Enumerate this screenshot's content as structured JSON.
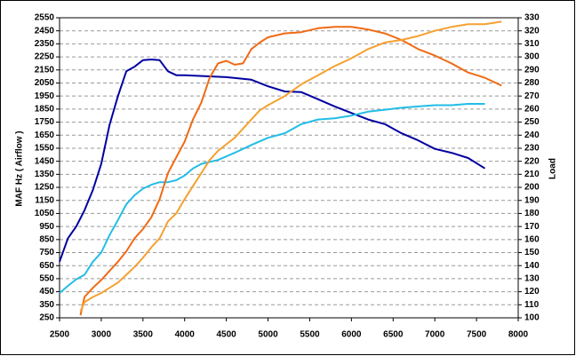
{
  "chart_data": {
    "type": "line",
    "y_label": "MAF Hz ( Airflow )",
    "y2_label": "Load",
    "xlim": [
      2500,
      8000
    ],
    "xticks": [
      2500,
      3000,
      3500,
      4000,
      4500,
      5000,
      5500,
      6000,
      6500,
      7000,
      7500,
      8000
    ],
    "ylim": [
      250,
      2550
    ],
    "yticks": [
      250,
      350,
      450,
      550,
      650,
      750,
      850,
      950,
      1050,
      1150,
      1250,
      1350,
      1450,
      1550,
      1650,
      1750,
      1850,
      1950,
      2050,
      2150,
      2250,
      2350,
      2450,
      2550
    ],
    "y2lim": [
      100,
      330
    ],
    "y2ticks": [
      100,
      110,
      120,
      130,
      140,
      150,
      160,
      170,
      180,
      190,
      200,
      210,
      220,
      230,
      240,
      250,
      260,
      270,
      280,
      290,
      300,
      310,
      320,
      330
    ],
    "grid": true,
    "series": [
      {
        "color": "#0000a0",
        "axis": "y",
        "x": [
          2500,
          2600,
          2700,
          2800,
          2900,
          3000,
          3100,
          3200,
          3300,
          3400,
          3500,
          3600,
          3700,
          3800,
          3900,
          4000,
          4500,
          4800,
          5000,
          5200,
          5400,
          5600,
          5800,
          6000,
          6200,
          6400,
          6600,
          6800,
          7000,
          7200,
          7400,
          7600
        ],
        "values": [
          680,
          860,
          950,
          1075,
          1230,
          1430,
          1730,
          1950,
          2140,
          2175,
          2225,
          2230,
          2225,
          2140,
          2110,
          2110,
          2095,
          2075,
          2025,
          1985,
          1980,
          1925,
          1870,
          1820,
          1770,
          1735,
          1665,
          1610,
          1545,
          1515,
          1475,
          1395
        ]
      },
      {
        "color": "#22bde6",
        "axis": "y",
        "x": [
          2500,
          2600,
          2700,
          2800,
          2900,
          3000,
          3100,
          3200,
          3300,
          3400,
          3500,
          3600,
          3700,
          3800,
          3900,
          4000,
          4100,
          4200,
          4400,
          4600,
          4800,
          5000,
          5200,
          5400,
          5600,
          5800,
          6000,
          6200,
          6400,
          6600,
          6800,
          7000,
          7200,
          7400,
          7600
        ],
        "values": [
          440,
          495,
          545,
          580,
          680,
          750,
          885,
          1000,
          1120,
          1190,
          1240,
          1270,
          1290,
          1290,
          1305,
          1340,
          1395,
          1430,
          1460,
          1515,
          1575,
          1630,
          1665,
          1735,
          1770,
          1780,
          1800,
          1830,
          1845,
          1860,
          1870,
          1880,
          1880,
          1890,
          1890
        ]
      },
      {
        "color": "#f06a14",
        "axis": "y2",
        "x": [
          2750,
          2800,
          2900,
          3000,
          3100,
          3200,
          3300,
          3400,
          3500,
          3600,
          3700,
          3800,
          3900,
          4000,
          4100,
          4200,
          4300,
          4400,
          4500,
          4600,
          4700,
          4800,
          4900,
          5000,
          5200,
          5400,
          5600,
          5800,
          6000,
          6200,
          6400,
          6600,
          6800,
          7000,
          7200,
          7400,
          7600,
          7800
        ],
        "values": [
          102,
          116,
          123,
          129,
          136,
          143,
          151,
          161,
          168,
          177,
          191,
          211,
          223,
          235,
          252,
          265,
          284,
          295,
          297,
          294,
          295,
          306,
          311,
          315,
          318,
          319,
          322,
          323,
          323,
          321,
          318,
          313,
          306,
          301,
          295,
          288,
          284,
          278
        ]
      },
      {
        "color": "#f5a030",
        "axis": "y2",
        "x": [
          2750,
          2800,
          2900,
          3000,
          3100,
          3200,
          3300,
          3400,
          3500,
          3600,
          3700,
          3800,
          3900,
          4000,
          4100,
          4200,
          4300,
          4400,
          4500,
          4600,
          4700,
          4800,
          4900,
          5000,
          5200,
          5400,
          5600,
          5800,
          6000,
          6200,
          6400,
          6600,
          6800,
          7000,
          7200,
          7400,
          7600,
          7800
        ],
        "values": [
          105,
          112,
          116,
          119,
          123,
          127,
          133,
          139,
          146,
          154,
          161,
          174,
          180,
          191,
          201,
          211,
          221,
          228,
          233,
          238,
          245,
          252,
          259,
          263,
          270,
          279,
          286,
          293,
          299,
          306,
          311,
          313,
          316,
          320,
          323,
          325,
          325,
          327
        ]
      }
    ]
  }
}
